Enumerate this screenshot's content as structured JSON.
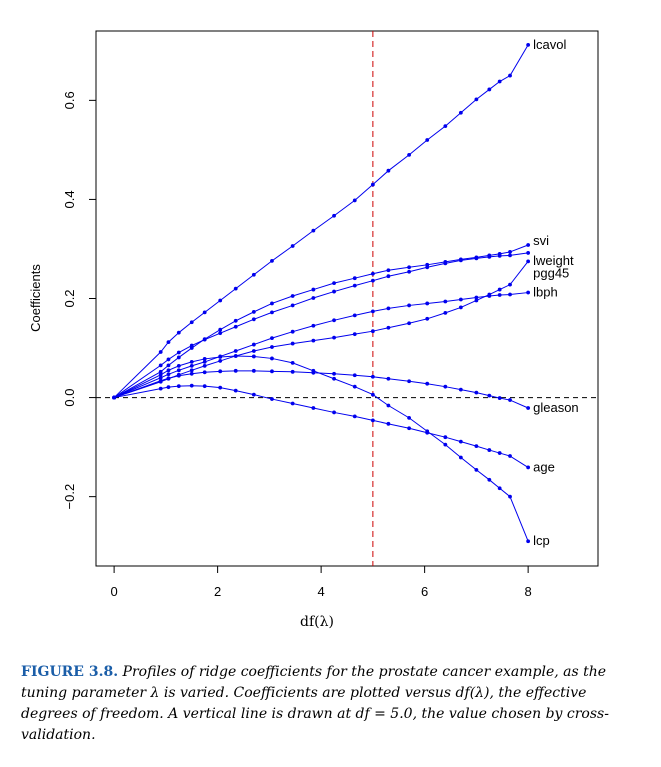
{
  "caption": {
    "label": "FIGURE 3.8.",
    "text": "Profiles of ridge coefficients for the prostate cancer example, as the tuning parameter λ is varied. Coefficients are plotted versus df(λ), the effective degrees of freedom. A vertical line is drawn at df = 5.0, the value chosen by cross-validation."
  },
  "chart_data": {
    "type": "line",
    "title": "",
    "xlabel": "df(λ)",
    "ylabel": "Coefficients",
    "xlim": [
      -0.35,
      9.35
    ],
    "ylim": [
      -0.34,
      0.74
    ],
    "xticks": [
      0,
      2,
      4,
      6,
      8
    ],
    "xtick_labels": [
      "0",
      "2",
      "4",
      "6",
      "8"
    ],
    "yticks": [
      -0.2,
      0.0,
      0.2,
      0.4,
      0.6
    ],
    "ytick_labels": [
      "−0.2",
      "0.0",
      "0.2",
      "0.4",
      "0.6"
    ],
    "vline": {
      "x": 5.0,
      "color": "#cc0000",
      "style": "dashed"
    },
    "hline": {
      "y": 0.0,
      "color": "#000000",
      "style": "dashed"
    },
    "line_color": "#0000ee",
    "grid": false,
    "series": [
      {
        "name": "lcavol",
        "x": [
          0,
          0.9,
          1.05,
          1.25,
          1.5,
          1.75,
          2.05,
          2.35,
          2.7,
          3.05,
          3.45,
          3.85,
          4.25,
          4.65,
          5.0,
          5.3,
          5.7,
          6.05,
          6.4,
          6.7,
          7.0,
          7.25,
          7.45,
          7.65,
          8.0
        ],
        "y": [
          0,
          0.092,
          0.112,
          0.131,
          0.152,
          0.172,
          0.196,
          0.22,
          0.248,
          0.276,
          0.306,
          0.337,
          0.367,
          0.398,
          0.43,
          0.458,
          0.49,
          0.52,
          0.548,
          0.575,
          0.602,
          0.622,
          0.638,
          0.65,
          0.712
        ]
      },
      {
        "name": "svi",
        "x": [
          0,
          0.9,
          1.05,
          1.25,
          1.5,
          1.75,
          2.05,
          2.35,
          2.7,
          3.05,
          3.45,
          3.85,
          4.25,
          4.65,
          5.0,
          5.3,
          5.7,
          6.05,
          6.4,
          6.7,
          7.0,
          7.25,
          7.45,
          7.65,
          8.0
        ],
        "y": [
          0,
          0.052,
          0.065,
          0.081,
          0.1,
          0.118,
          0.137,
          0.155,
          0.173,
          0.19,
          0.205,
          0.218,
          0.231,
          0.241,
          0.25,
          0.257,
          0.263,
          0.268,
          0.274,
          0.279,
          0.283,
          0.287,
          0.29,
          0.294,
          0.308
        ]
      },
      {
        "name": "lweight",
        "x": [
          0,
          0.9,
          1.05,
          1.25,
          1.5,
          1.75,
          2.05,
          2.35,
          2.7,
          3.05,
          3.45,
          3.85,
          4.25,
          4.65,
          5.0,
          5.3,
          5.7,
          6.05,
          6.4,
          6.7,
          7.0,
          7.25,
          7.45,
          7.65,
          8.0
        ],
        "y": [
          0,
          0.065,
          0.077,
          0.091,
          0.105,
          0.117,
          0.13,
          0.143,
          0.158,
          0.172,
          0.186,
          0.201,
          0.214,
          0.226,
          0.236,
          0.245,
          0.254,
          0.263,
          0.271,
          0.277,
          0.281,
          0.284,
          0.286,
          0.287,
          0.292
        ]
      },
      {
        "name": "pgg45",
        "x": [
          0,
          0.9,
          1.05,
          1.25,
          1.5,
          1.75,
          2.05,
          2.35,
          2.7,
          3.05,
          3.45,
          3.85,
          4.25,
          4.65,
          5.0,
          5.3,
          5.7,
          6.05,
          6.4,
          6.7,
          7.0,
          7.25,
          7.45,
          7.65,
          8.0
        ],
        "y": [
          0,
          0.032,
          0.038,
          0.046,
          0.055,
          0.064,
          0.074,
          0.084,
          0.094,
          0.102,
          0.109,
          0.115,
          0.121,
          0.128,
          0.134,
          0.141,
          0.15,
          0.159,
          0.171,
          0.182,
          0.196,
          0.208,
          0.218,
          0.228,
          0.275
        ]
      },
      {
        "name": "lbph",
        "x": [
          0,
          0.9,
          1.05,
          1.25,
          1.5,
          1.75,
          2.05,
          2.35,
          2.7,
          3.05,
          3.45,
          3.85,
          4.25,
          4.65,
          5.0,
          5.3,
          5.7,
          6.05,
          6.4,
          6.7,
          7.0,
          7.25,
          7.45,
          7.65,
          8.0
        ],
        "y": [
          0,
          0.04,
          0.047,
          0.055,
          0.064,
          0.072,
          0.083,
          0.094,
          0.107,
          0.12,
          0.133,
          0.145,
          0.156,
          0.166,
          0.174,
          0.18,
          0.186,
          0.19,
          0.194,
          0.198,
          0.202,
          0.205,
          0.207,
          0.208,
          0.212
        ]
      },
      {
        "name": "gleason",
        "x": [
          0,
          0.9,
          1.05,
          1.25,
          1.5,
          1.75,
          2.05,
          2.35,
          2.7,
          3.05,
          3.45,
          3.85,
          4.25,
          4.65,
          5.0,
          5.3,
          5.7,
          6.05,
          6.4,
          6.7,
          7.0,
          7.25,
          7.45,
          7.65,
          8.0
        ],
        "y": [
          0,
          0.034,
          0.039,
          0.044,
          0.048,
          0.051,
          0.053,
          0.054,
          0.054,
          0.053,
          0.052,
          0.05,
          0.048,
          0.045,
          0.042,
          0.038,
          0.033,
          0.028,
          0.022,
          0.016,
          0.01,
          0.004,
          -0.001,
          -0.005,
          -0.021
        ]
      },
      {
        "name": "age",
        "x": [
          0,
          0.9,
          1.05,
          1.25,
          1.5,
          1.75,
          2.05,
          2.35,
          2.7,
          3.05,
          3.45,
          3.85,
          4.25,
          4.65,
          5.0,
          5.3,
          5.7,
          6.05,
          6.4,
          6.7,
          7.0,
          7.25,
          7.45,
          7.65,
          8.0
        ],
        "y": [
          0,
          0.018,
          0.021,
          0.023,
          0.024,
          0.023,
          0.02,
          0.014,
          0.006,
          -0.003,
          -0.012,
          -0.021,
          -0.03,
          -0.038,
          -0.046,
          -0.053,
          -0.062,
          -0.071,
          -0.08,
          -0.089,
          -0.098,
          -0.106,
          -0.112,
          -0.118,
          -0.141
        ]
      },
      {
        "name": "lcp",
        "x": [
          0,
          0.9,
          1.05,
          1.25,
          1.5,
          1.75,
          2.05,
          2.35,
          2.7,
          3.05,
          3.45,
          3.85,
          4.25,
          4.65,
          5.0,
          5.3,
          5.7,
          6.05,
          6.4,
          6.7,
          7.0,
          7.25,
          7.45,
          7.65,
          8.0
        ],
        "y": [
          0,
          0.046,
          0.055,
          0.064,
          0.072,
          0.078,
          0.082,
          0.084,
          0.083,
          0.079,
          0.07,
          0.054,
          0.038,
          0.022,
          0.006,
          -0.016,
          -0.041,
          -0.068,
          -0.095,
          -0.121,
          -0.146,
          -0.166,
          -0.183,
          -0.2,
          -0.29
        ]
      }
    ]
  }
}
